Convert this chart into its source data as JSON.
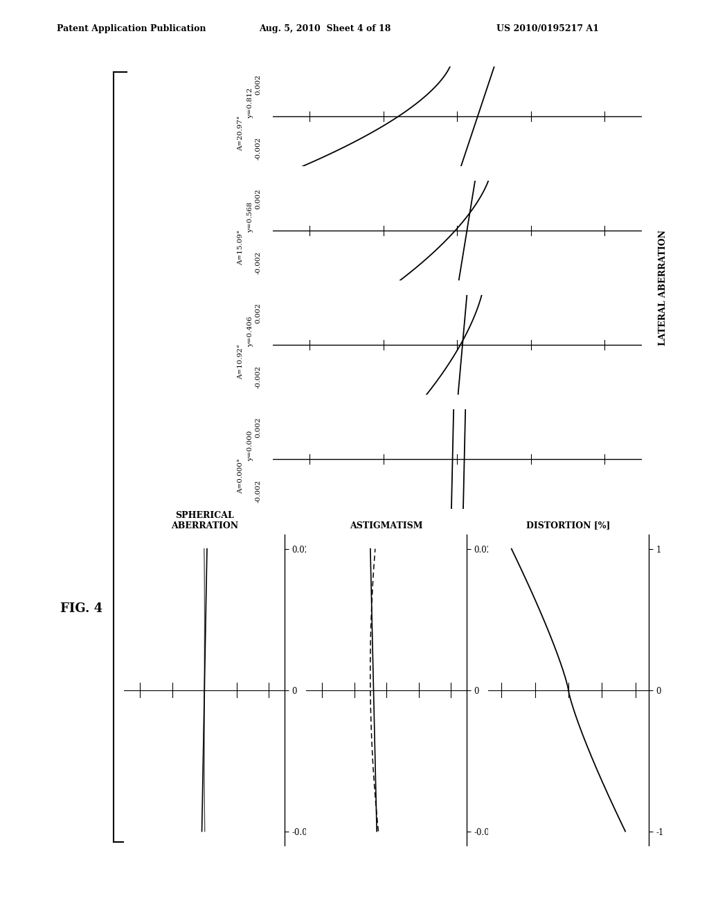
{
  "title": "FIG. 4",
  "header_left": "Patent Application Publication",
  "header_mid": "Aug. 5, 2010  Sheet 4 of 18",
  "header_right": "US 2010/0195217 A1",
  "lateral_labels": [
    {
      "y": "y=0.812",
      "A": "A=20.97°"
    },
    {
      "y": "y=0.568",
      "A": "A=15.09°"
    },
    {
      "y": "y=0.406",
      "A": "A=10.92°"
    },
    {
      "y": "y=0.000",
      "A": "A=0.000°"
    }
  ],
  "lat_axis_label": "LATERAL ABERRATION",
  "distortion_label": "DISTORTION [%]",
  "astigmatism_label": "ASTIGMATISM",
  "spherical_label": "SPHERICAL\nABERRATION",
  "background": "#ffffff",
  "line_color": "#000000"
}
